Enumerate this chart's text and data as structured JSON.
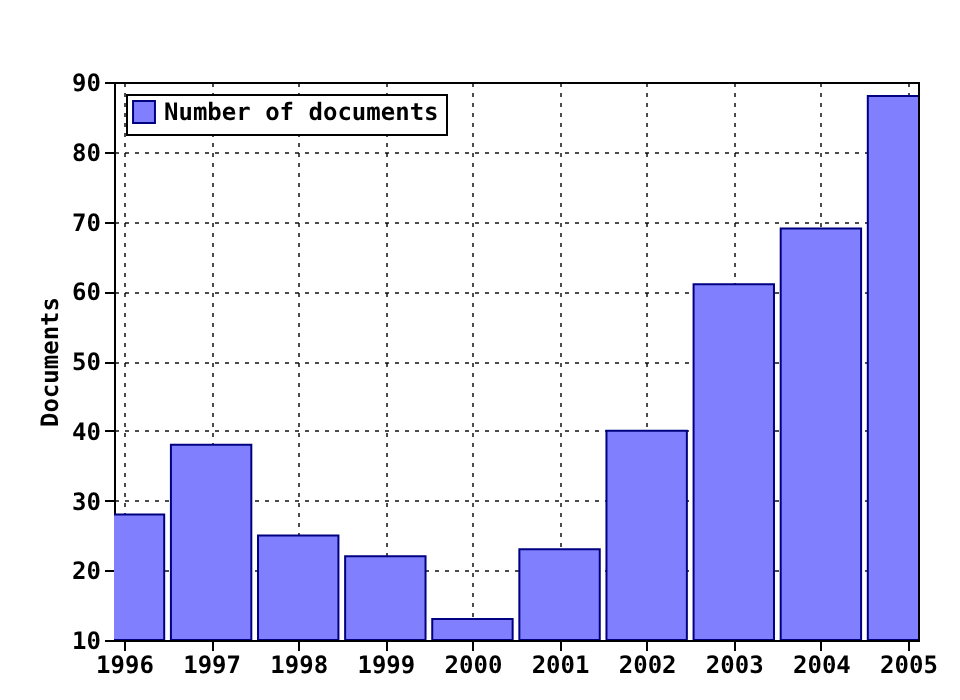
{
  "chart_data": {
    "type": "bar",
    "x": [
      1996,
      1997,
      1998,
      1999,
      2000,
      2001,
      2002,
      2003,
      2004,
      2005
    ],
    "series": [
      {
        "name": "Number of documents",
        "color": "#8080ff",
        "values": [
          28,
          38,
          25,
          22,
          13,
          23,
          40,
          61,
          69,
          88
        ]
      }
    ],
    "ylabel": "Documents",
    "xlim": [
      1996,
      2005
    ],
    "xticks": [
      1996,
      1997,
      1998,
      1999,
      2000,
      2001,
      2002,
      2003,
      2004,
      2005
    ],
    "ylim": [
      10,
      90
    ],
    "yticks": [
      10,
      20,
      30,
      40,
      50,
      60,
      70,
      80,
      90
    ],
    "grid": true,
    "legend": "top left"
  }
}
